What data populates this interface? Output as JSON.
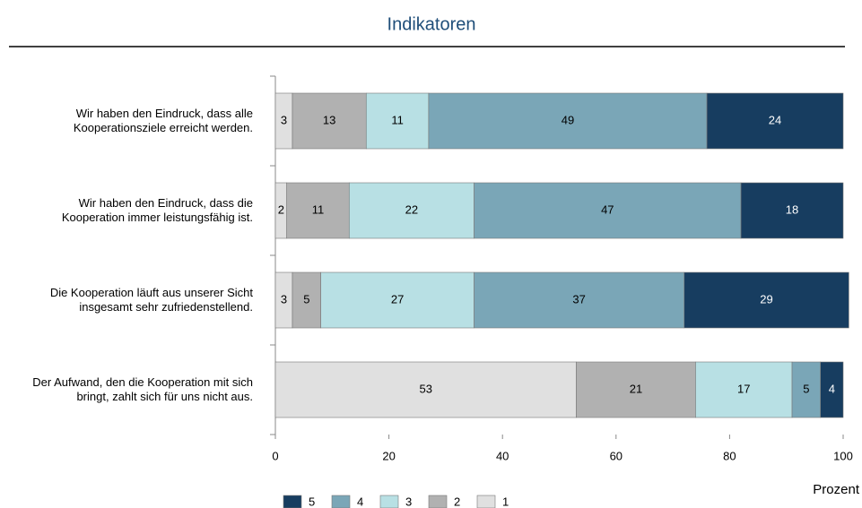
{
  "chart_data": {
    "type": "stacked_barh",
    "title": "Indikatoren",
    "x_label": "Prozent",
    "categories": [
      "Wir haben den Eindruck, dass alle Kooperationsziele erreicht werden.",
      "Wir haben den Eindruck, dass die Kooperation immer leistungsfähig ist.",
      "Die Kooperation läuft aus unserer Sicht insgesamt sehr zufriedenstellend.",
      "Der Aufwand, den die Kooperation mit sich bringt, zahlt sich für uns nicht aus."
    ],
    "series": [
      {
        "name": "1",
        "color": "#e0e0e0",
        "values": [
          3,
          2,
          3,
          53
        ]
      },
      {
        "name": "2",
        "color": "#b1b1b1",
        "values": [
          13,
          11,
          5,
          21
        ]
      },
      {
        "name": "3",
        "color": "#b8e0e4",
        "values": [
          11,
          22,
          27,
          17
        ]
      },
      {
        "name": "4",
        "color": "#7aa6b7",
        "values": [
          49,
          47,
          37,
          5
        ]
      },
      {
        "name": "5",
        "color": "#173d60",
        "values": [
          24,
          18,
          29,
          4
        ]
      }
    ],
    "xlim": [
      0,
      100
    ],
    "xticks": [
      0,
      20,
      40,
      60,
      80,
      100
    ]
  }
}
